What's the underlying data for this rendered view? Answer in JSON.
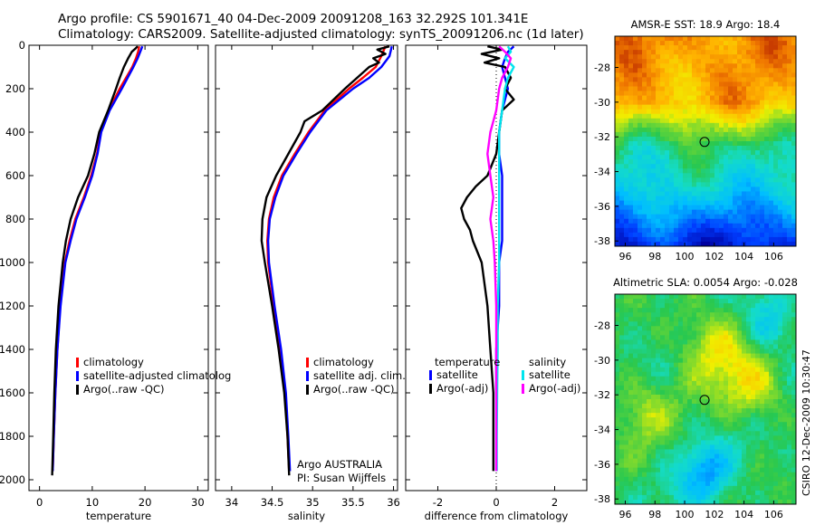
{
  "header": {
    "line1": "Argo profile: CS 5901671_40 04-Dec-2009 20091208_163 32.292S 101.341E",
    "line2": "Climatology: CARS2009. Satellite-adjusted climatology: synTS_20091206.nc (1d later)"
  },
  "side_label": "CSIRO 12-Dec-2009 10:30:47",
  "colors": {
    "climatology": "#ff0000",
    "satellite": "#0000ff",
    "argo": "#000000",
    "salinity_satellite": "#00e5ee",
    "salinity_argo": "#ff00ff",
    "marker": "#000000"
  },
  "chart_data": [
    {
      "id": "temperature",
      "type": "line",
      "xlabel": "temperature",
      "ylabel": "",
      "xlim": [
        -2,
        32
      ],
      "ylim": [
        2050,
        0
      ],
      "xticks": [
        "0",
        "10",
        "20",
        "30"
      ],
      "yticks": [
        "0",
        "200",
        "400",
        "600",
        "800",
        "1000",
        "1200",
        "1400",
        "1600",
        "1800",
        "2000"
      ],
      "legend": {
        "position": "lower-middle",
        "entries": [
          "climatology",
          "satellite-adjusted climatolog",
          "Argo(..raw -QC)"
        ]
      },
      "series": [
        {
          "name": "climatology",
          "color": "#ff0000",
          "depth": [
            5,
            30,
            60,
            100,
            150,
            200,
            300,
            400,
            500,
            600,
            700,
            800,
            900,
            1000,
            1200,
            1400,
            1600,
            1800,
            1960
          ],
          "values": [
            18.9,
            18.7,
            18.3,
            17.6,
            16.4,
            15.2,
            13.1,
            11.6,
            10.9,
            9.8,
            8.4,
            6.8,
            5.7,
            4.8,
            3.9,
            3.4,
            3.0,
            2.7,
            2.5
          ]
        },
        {
          "name": "satellite-adjusted climatology",
          "color": "#0000ff",
          "depth": [
            5,
            30,
            60,
            100,
            150,
            200,
            300,
            400,
            500,
            600,
            700,
            800,
            900,
            1000,
            1200,
            1400,
            1600,
            1800,
            1960
          ],
          "values": [
            19.5,
            19.1,
            18.6,
            17.8,
            16.7,
            15.6,
            13.3,
            11.7,
            11.0,
            10.0,
            8.6,
            7.0,
            5.9,
            4.9,
            4.0,
            3.4,
            3.0,
            2.7,
            2.5
          ]
        },
        {
          "name": "Argo(..raw -QC)",
          "color": "#000000",
          "depth": [
            5,
            15,
            30,
            60,
            100,
            150,
            200,
            300,
            400,
            500,
            600,
            700,
            800,
            900,
            1000,
            1200,
            1400,
            1600,
            1800,
            1980
          ],
          "values": [
            18.6,
            18.2,
            17.5,
            16.8,
            16.0,
            15.2,
            14.5,
            13.0,
            11.3,
            10.4,
            9.2,
            7.3,
            5.9,
            5.0,
            4.4,
            3.6,
            3.1,
            2.8,
            2.6,
            2.4
          ]
        }
      ]
    },
    {
      "id": "salinity",
      "type": "line",
      "xlabel": "salinity",
      "ylabel": "",
      "xlim": [
        33.8,
        36.05
      ],
      "ylim": [
        2050,
        0
      ],
      "xticks": [
        "34",
        "34.5",
        "35",
        "35.5",
        "36"
      ],
      "legend": {
        "position": "lower-middle",
        "entries": [
          "climatology",
          "satellite adj. clim.",
          "Argo(..raw -QC)"
        ]
      },
      "annotation": {
        "line1": "Argo AUSTRALIA",
        "line2": "PI: Susan Wijffels"
      },
      "series": [
        {
          "name": "climatology",
          "color": "#ff0000",
          "depth": [
            5,
            50,
            100,
            150,
            200,
            300,
            400,
            500,
            600,
            700,
            800,
            900,
            1000,
            1200,
            1400,
            1600,
            1800,
            1960
          ],
          "values": [
            35.9,
            35.85,
            35.78,
            35.62,
            35.45,
            35.15,
            34.95,
            34.78,
            34.62,
            34.52,
            34.46,
            34.44,
            34.45,
            34.52,
            34.6,
            34.66,
            34.69,
            34.71
          ]
        },
        {
          "name": "satellite adj. clim.",
          "color": "#0000ff",
          "depth": [
            5,
            50,
            100,
            150,
            200,
            300,
            400,
            500,
            600,
            700,
            800,
            900,
            1000,
            1200,
            1400,
            1600,
            1800,
            1960
          ],
          "values": [
            35.98,
            35.95,
            35.85,
            35.7,
            35.5,
            35.17,
            34.97,
            34.8,
            34.64,
            34.54,
            34.47,
            34.45,
            34.46,
            34.53,
            34.61,
            34.67,
            34.7,
            34.72
          ]
        },
        {
          "name": "Argo(..raw -QC)",
          "color": "#000000",
          "depth": [
            5,
            20,
            40,
            60,
            80,
            100,
            150,
            200,
            300,
            350,
            400,
            500,
            600,
            700,
            800,
            900,
            1000,
            1200,
            1400,
            1600,
            1800,
            1980
          ],
          "values": [
            35.95,
            35.8,
            35.9,
            35.75,
            35.82,
            35.7,
            35.55,
            35.4,
            35.12,
            34.9,
            34.85,
            34.7,
            34.55,
            34.43,
            34.38,
            34.37,
            34.41,
            34.5,
            34.58,
            34.65,
            34.69,
            34.71
          ]
        }
      ]
    },
    {
      "id": "difference",
      "type": "line",
      "xlabel": "difference from climatology",
      "ylabel": "",
      "xlim": [
        -3.1,
        3.1
      ],
      "ylim": [
        2050,
        0
      ],
      "xticks": [
        "-2",
        "0",
        "2"
      ],
      "legend": {
        "position": "lower",
        "temperature_title": "temperature",
        "salinity_title": "salinity",
        "entries": [
          "satellite",
          "Argo(-adj)",
          "satellite",
          "Argo(-adj)"
        ]
      },
      "series": [
        {
          "name": "temperature satellite",
          "color": "#0000ff",
          "depth": [
            5,
            30,
            60,
            100,
            150,
            200,
            300,
            400,
            500,
            600,
            700,
            800,
            900,
            1000,
            1200,
            1400,
            1600,
            1800,
            1960
          ],
          "values": [
            0.6,
            0.4,
            0.3,
            0.2,
            0.3,
            0.4,
            0.2,
            0.1,
            0.1,
            0.2,
            0.2,
            0.2,
            0.2,
            0.1,
            0.1,
            0.0,
            0.0,
            0.0,
            0.0
          ]
        },
        {
          "name": "temperature Argo(-adj)",
          "color": "#000000",
          "depth": [
            5,
            20,
            40,
            60,
            80,
            100,
            150,
            200,
            250,
            300,
            400,
            500,
            600,
            650,
            700,
            750,
            800,
            850,
            900,
            1000,
            1100,
            1200,
            1400,
            1600,
            1800,
            1960
          ],
          "values": [
            -0.3,
            0.2,
            -0.5,
            0.1,
            -0.4,
            0.3,
            0.5,
            0.3,
            0.6,
            0.2,
            0.1,
            0.0,
            -0.3,
            -0.7,
            -1.0,
            -1.2,
            -1.1,
            -0.9,
            -0.8,
            -0.5,
            -0.4,
            -0.3,
            -0.2,
            -0.1,
            -0.1,
            -0.1
          ]
        },
        {
          "name": "salinity satellite",
          "color": "#00e5ee",
          "depth": [
            5,
            30,
            60,
            100,
            150,
            200,
            300,
            400,
            500,
            600,
            700,
            800,
            900,
            1000,
            1200,
            1400,
            1600,
            1800,
            1960
          ],
          "values": [
            0.4,
            0.5,
            0.3,
            0.6,
            0.4,
            0.3,
            0.2,
            0.1,
            0.1,
            0.1,
            0.1,
            0.1,
            0.1,
            0.1,
            0.05,
            0.05,
            0.03,
            0.02,
            0.02
          ]
        },
        {
          "name": "salinity Argo(-adj)",
          "color": "#ff00ff",
          "depth": [
            5,
            30,
            60,
            100,
            150,
            200,
            300,
            400,
            500,
            600,
            700,
            800,
            900,
            1000,
            1200,
            1400,
            1600,
            1800,
            1960
          ],
          "values": [
            0.1,
            0.3,
            0.5,
            0.4,
            0.2,
            0.1,
            0.0,
            -0.2,
            -0.3,
            -0.2,
            -0.1,
            -0.2,
            -0.1,
            -0.05,
            0.0,
            0.0,
            0.0,
            0.0,
            0.0
          ]
        }
      ]
    },
    {
      "id": "sst_map",
      "type": "heatmap",
      "title": "AMSR-E SST: 18.9 Argo: 18.4",
      "xlim": [
        95.3,
        107.5
      ],
      "ylim": [
        -38.3,
        -26.2
      ],
      "xticks": [
        "96",
        "98",
        "100",
        "102",
        "104",
        "106"
      ],
      "yticks": [
        "-28",
        "-30",
        "-32",
        "-34",
        "-36",
        "-38"
      ],
      "marker": {
        "lon": 101.341,
        "lat": -32.292
      }
    },
    {
      "id": "sla_map",
      "type": "heatmap",
      "title": "Altimetric SLA: 0.0054 Argo: -0.028",
      "xlim": [
        95.3,
        107.5
      ],
      "ylim": [
        -38.3,
        -26.2
      ],
      "xticks": [
        "96",
        "98",
        "100",
        "102",
        "104",
        "106"
      ],
      "yticks": [
        "-28",
        "-30",
        "-32",
        "-34",
        "-36",
        "-38"
      ],
      "marker": {
        "lon": 101.341,
        "lat": -32.292
      }
    }
  ]
}
